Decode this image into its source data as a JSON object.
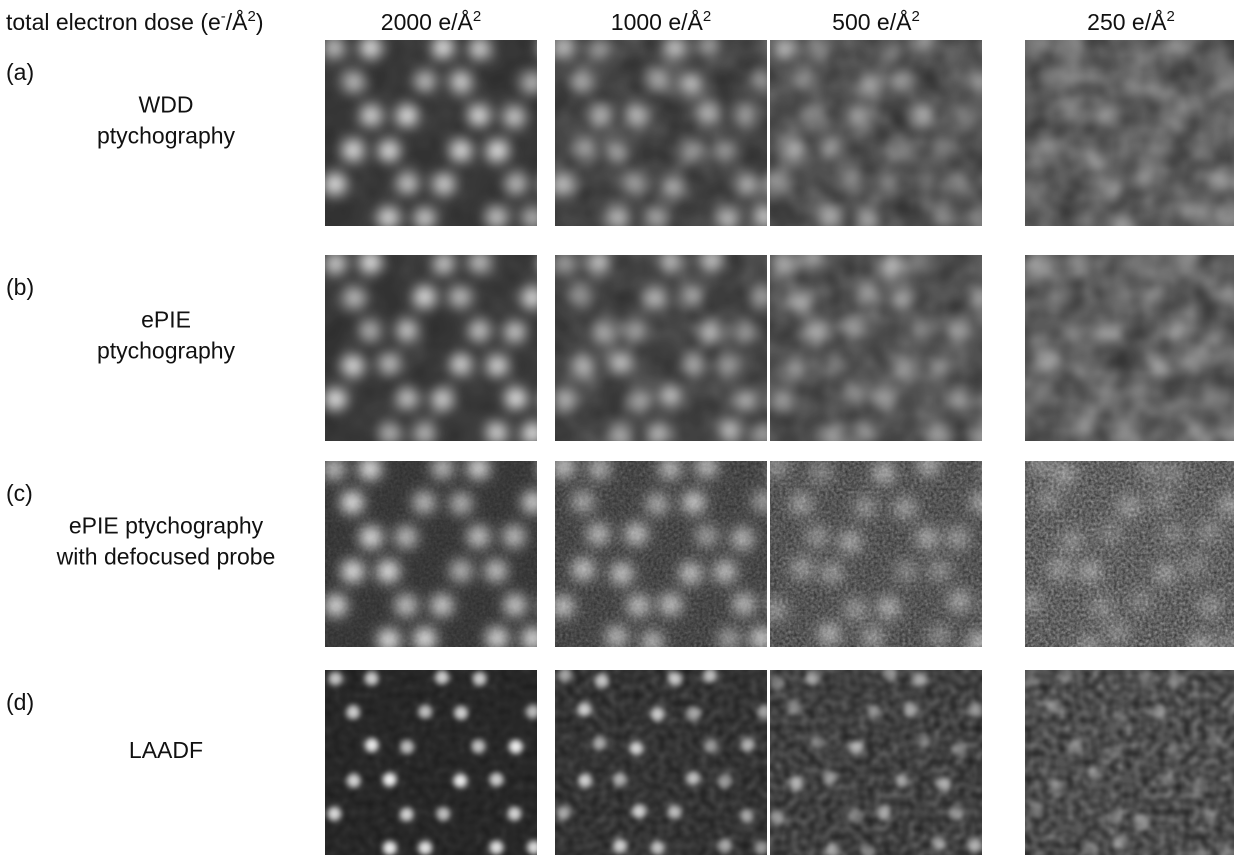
{
  "header": {
    "prefix": "total electron dose (e",
    "sup1": "-",
    "mid": "/Å",
    "sup2": "2",
    "suffix": ")"
  },
  "columns": [
    {
      "text": "2000 e/Å",
      "sup": "2"
    },
    {
      "text": "1000 e/Å",
      "sup": "2"
    },
    {
      "text": "500 e/Å",
      "sup": "2"
    },
    {
      "text": "250 e/Å",
      "sup": "2"
    }
  ],
  "rows": [
    {
      "label": "(a)",
      "name": [
        "WDD",
        "ptychography"
      ]
    },
    {
      "label": "(b)",
      "name": [
        "ePIE",
        "ptychography"
      ]
    },
    {
      "label": "(c)",
      "name": [
        "ePIE ptychography",
        "with defocused probe"
      ]
    },
    {
      "label": "(d)",
      "name": [
        "LAADF"
      ]
    }
  ]
}
